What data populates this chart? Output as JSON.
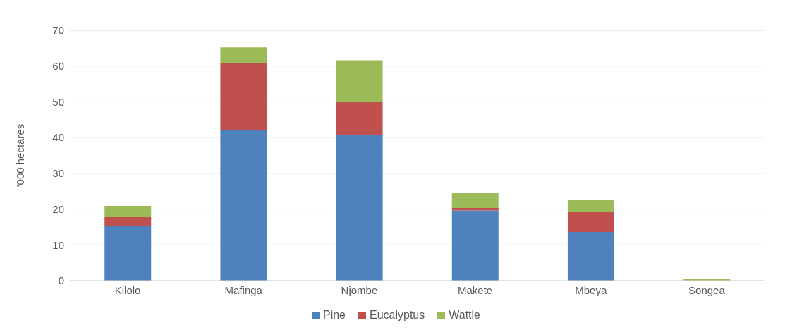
{
  "chart_data": {
    "type": "bar",
    "stacked": true,
    "ylabel": "'000 hectares",
    "categories": [
      "Kilolo",
      "Mafinga",
      "Njombe",
      "Makete",
      "Mbeya",
      "Songea"
    ],
    "series": [
      {
        "name": "Pine",
        "color": "#4f81bd",
        "values": [
          15.4,
          42.2,
          40.7,
          19.6,
          13.6,
          null
        ]
      },
      {
        "name": "Eucalyptus",
        "color": "#c0504d",
        "values": [
          2.5,
          18.6,
          9.4,
          0.7,
          5.6,
          null
        ]
      },
      {
        "name": "Wattle",
        "color": "#9bbb59",
        "values": [
          3.0,
          4.4,
          11.5,
          4.2,
          3.4,
          0.6
        ]
      }
    ],
    "ylim": [
      0,
      70
    ],
    "yticks": [
      0,
      10,
      20,
      30,
      40,
      50,
      60,
      70
    ],
    "grid": "y",
    "legend": "bottom"
  }
}
